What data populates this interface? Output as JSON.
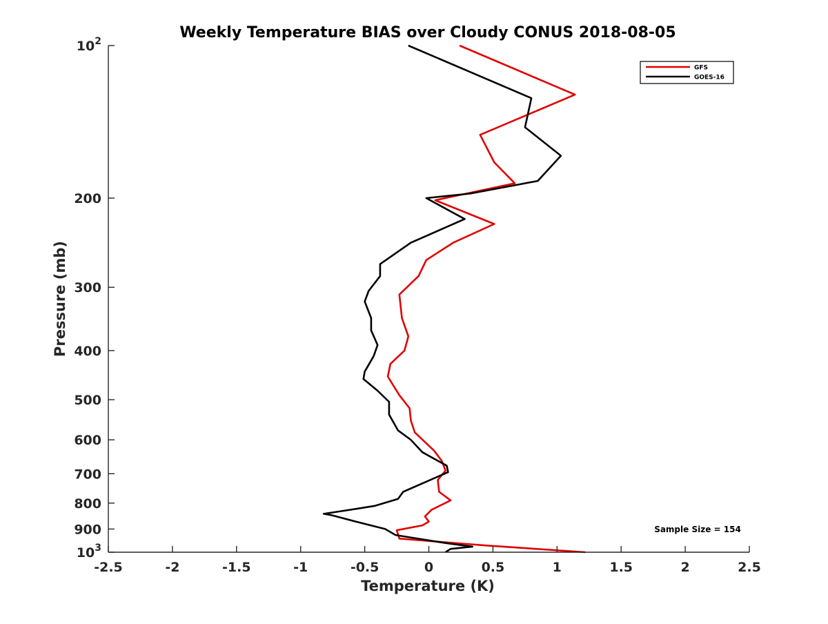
{
  "chart_data": {
    "type": "line",
    "title": "Weekly Temperature BIAS over Cloudy CONUS 2018-08-05",
    "xlabel": "Temperature (K)",
    "ylabel": "Pressure (mb)",
    "xlim": [
      -2.5,
      2.5
    ],
    "ylim": [
      100,
      1000
    ],
    "y_scale": "log",
    "y_reversed": true,
    "x_ticks": [
      -2.5,
      -2,
      -1.5,
      -1,
      -0.5,
      0,
      0.5,
      1,
      1.5,
      2,
      2.5
    ],
    "x_tick_labels": [
      "-2.5",
      "-2",
      "-1.5",
      "-1",
      "-0.5",
      "0",
      "0.5",
      "1",
      "1.5",
      "2",
      "2.5"
    ],
    "y_ticks": [
      100,
      200,
      300,
      400,
      500,
      600,
      700,
      800,
      900,
      1000
    ],
    "y_tick_labels": [
      {
        "base": "10",
        "exp": "2"
      },
      {
        "base": "200",
        "exp": ""
      },
      {
        "base": "300",
        "exp": ""
      },
      {
        "base": "400",
        "exp": ""
      },
      {
        "base": "500",
        "exp": ""
      },
      {
        "base": "600",
        "exp": ""
      },
      {
        "base": "700",
        "exp": ""
      },
      {
        "base": "800",
        "exp": ""
      },
      {
        "base": "900",
        "exp": ""
      },
      {
        "base": "10",
        "exp": "3"
      }
    ],
    "grid": false,
    "legend": "top-right",
    "series": [
      {
        "name": "GFS",
        "color": "#e00000",
        "points": [
          [
            0.24,
            100
          ],
          [
            1.14,
            125
          ],
          [
            0.4,
            150
          ],
          [
            0.51,
            170
          ],
          [
            0.67,
            187
          ],
          [
            0.05,
            202
          ],
          [
            0.51,
            225
          ],
          [
            0.19,
            245
          ],
          [
            -0.02,
            265
          ],
          [
            -0.08,
            285
          ],
          [
            -0.23,
            310
          ],
          [
            -0.21,
            345
          ],
          [
            -0.16,
            375
          ],
          [
            -0.19,
            400
          ],
          [
            -0.3,
            425
          ],
          [
            -0.32,
            450
          ],
          [
            -0.23,
            490
          ],
          [
            -0.15,
            520
          ],
          [
            -0.14,
            550
          ],
          [
            -0.11,
            580
          ],
          [
            0.04,
            630
          ],
          [
            0.1,
            660
          ],
          [
            0.13,
            690
          ],
          [
            0.07,
            720
          ],
          [
            0.08,
            760
          ],
          [
            0.17,
            790
          ],
          [
            0.02,
            825
          ],
          [
            -0.03,
            850
          ],
          [
            0.0,
            870
          ],
          [
            -0.05,
            885
          ],
          [
            -0.25,
            905
          ],
          [
            -0.23,
            940
          ],
          [
            0.45,
            970
          ],
          [
            1.22,
            1000
          ]
        ]
      },
      {
        "name": "GOES-16",
        "color": "#000000",
        "points": [
          [
            -0.16,
            100
          ],
          [
            0.8,
            127
          ],
          [
            0.75,
            145
          ],
          [
            1.03,
            165
          ],
          [
            0.85,
            185
          ],
          [
            0.32,
            196
          ],
          [
            -0.02,
            200
          ],
          [
            0.28,
            220
          ],
          [
            -0.14,
            245
          ],
          [
            -0.38,
            270
          ],
          [
            -0.38,
            285
          ],
          [
            -0.47,
            305
          ],
          [
            -0.5,
            320
          ],
          [
            -0.45,
            345
          ],
          [
            -0.45,
            365
          ],
          [
            -0.4,
            390
          ],
          [
            -0.43,
            410
          ],
          [
            -0.5,
            440
          ],
          [
            -0.51,
            455
          ],
          [
            -0.4,
            480
          ],
          [
            -0.31,
            505
          ],
          [
            -0.31,
            535
          ],
          [
            -0.24,
            575
          ],
          [
            -0.14,
            600
          ],
          [
            -0.05,
            635
          ],
          [
            0.14,
            675
          ],
          [
            0.15,
            695
          ],
          [
            -0.2,
            760
          ],
          [
            -0.24,
            785
          ],
          [
            -0.42,
            810
          ],
          [
            -0.55,
            820
          ],
          [
            -0.82,
            840
          ],
          [
            -0.76,
            845
          ],
          [
            -0.57,
            870
          ],
          [
            -0.34,
            900
          ],
          [
            -0.26,
            925
          ],
          [
            0.14,
            960
          ],
          [
            0.34,
            975
          ],
          [
            0.17,
            985
          ],
          [
            0.13,
            1000
          ]
        ]
      }
    ],
    "annotations": [
      "Sample Size = 154"
    ]
  }
}
